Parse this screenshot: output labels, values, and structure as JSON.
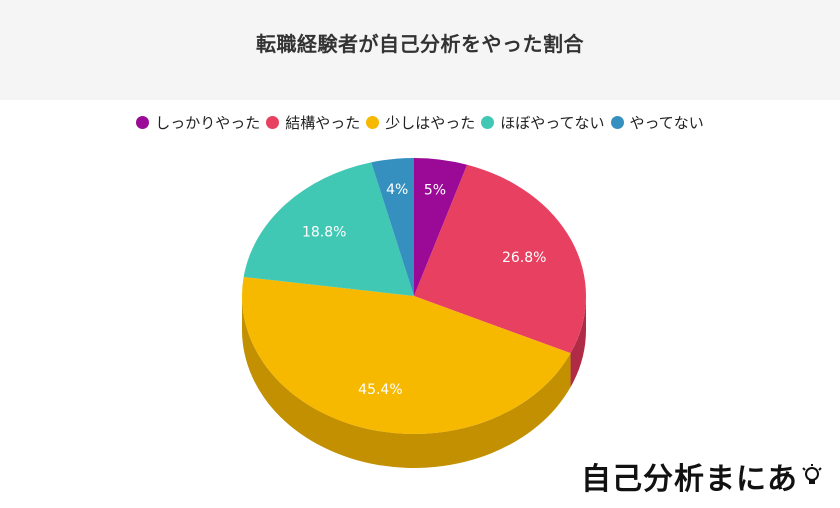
{
  "chart_data": {
    "type": "pie",
    "title": "転職経験者が自己分析をやった割合",
    "categories": [
      "しっかりやった",
      "結構やった",
      "少しはやった",
      "ほぼやってない",
      "やってない"
    ],
    "values": [
      5,
      26.8,
      45.4,
      18.8,
      4
    ],
    "labels": [
      "5%",
      "26.8%",
      "45.4%",
      "18.8%",
      "4%"
    ],
    "colors": [
      "#9b0a96",
      "#e84060",
      "#f7b800",
      "#40c8b4",
      "#3590c0"
    ],
    "side_colors": [
      "#6e0069",
      "#b02c46",
      "#c29000",
      "#2e9c8c",
      "#246c94"
    ],
    "legend_position": "top",
    "style": "3d"
  },
  "brand": {
    "text": "自己分析まにあ"
  }
}
